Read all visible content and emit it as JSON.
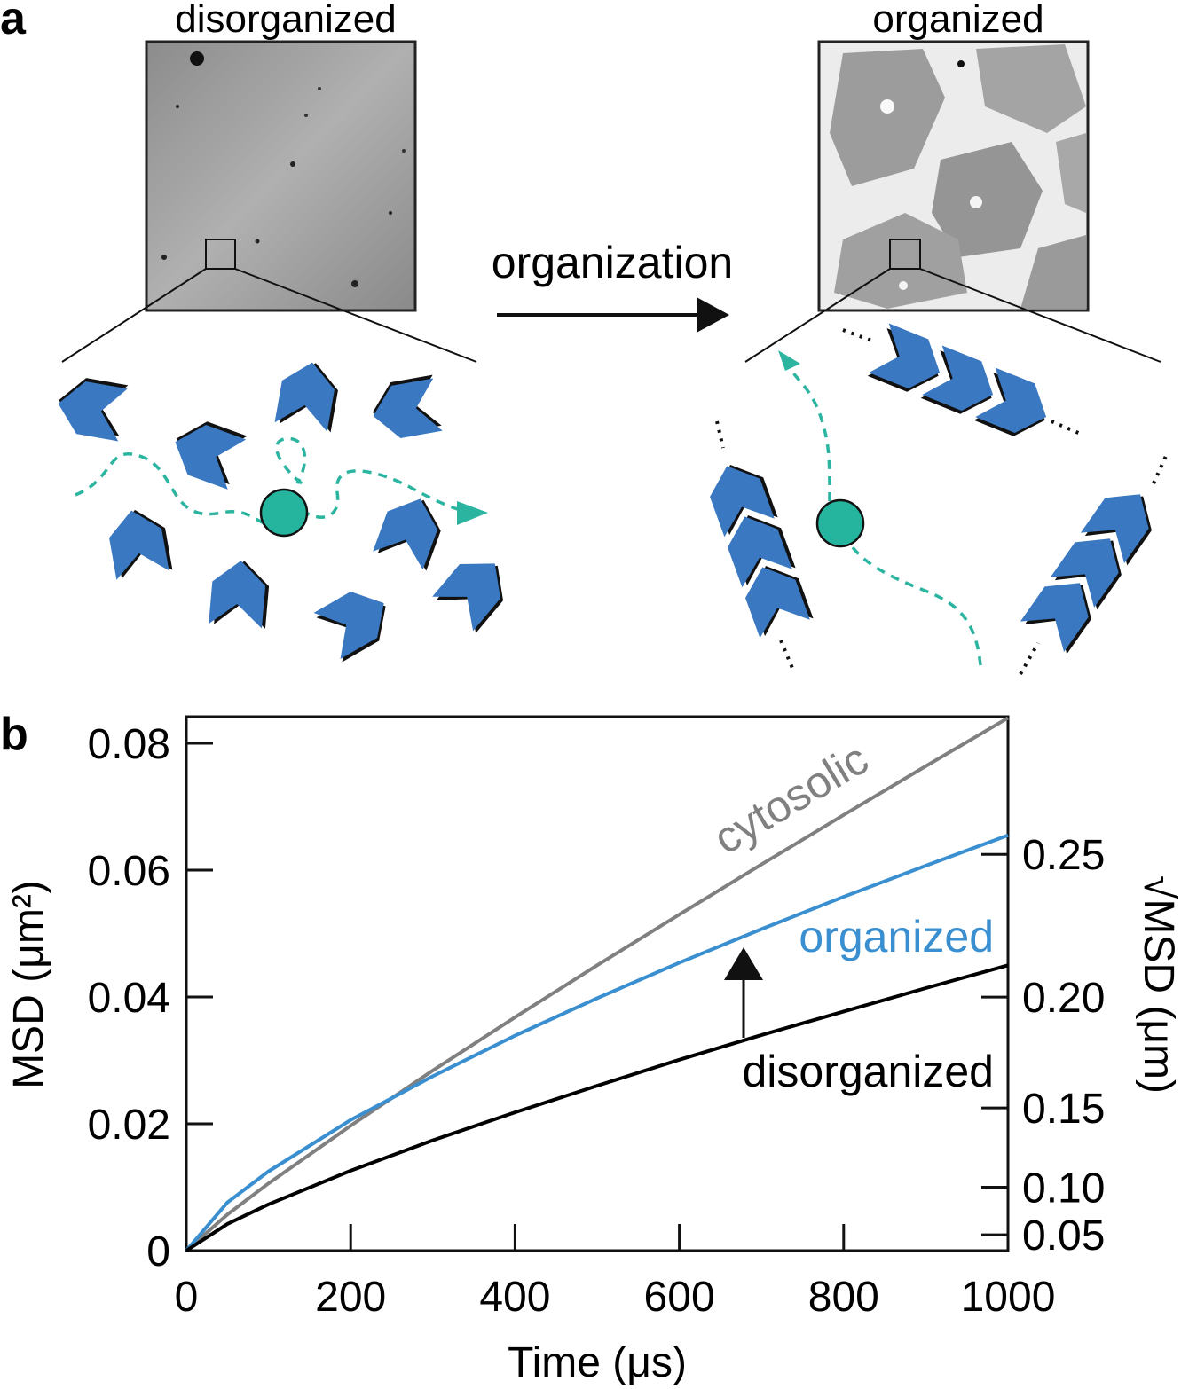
{
  "panel_a": {
    "panel_label": "a",
    "left_title": "disorganized",
    "right_title": "organized",
    "arrow_label": "organization"
  },
  "chart_data": {
    "type": "line",
    "panel_label": "b",
    "x_label": "Time (μs)",
    "y_label": "MSD (μm²)",
    "y2_label": "√MSD (μm)",
    "x": [
      0,
      50,
      100,
      200,
      300,
      400,
      500,
      600,
      700,
      800,
      900,
      1000
    ],
    "series": [
      {
        "name": "cytosolic",
        "color": "#808080",
        "values": [
          0,
          0.0057,
          0.0106,
          0.0197,
          0.0284,
          0.0368,
          0.045,
          0.053,
          0.0609,
          0.0687,
          0.0764,
          0.084
        ]
      },
      {
        "name": "organized",
        "color": "#3a8fd0",
        "values": [
          0,
          0.0076,
          0.0125,
          0.0206,
          0.0275,
          0.0339,
          0.0398,
          0.0454,
          0.0507,
          0.0558,
          0.0607,
          0.0655
        ]
      },
      {
        "name": "disorganized",
        "color": "#000000",
        "values": [
          0,
          0.0042,
          0.0073,
          0.0126,
          0.0174,
          0.0218,
          0.026,
          0.0301,
          0.034,
          0.0377,
          0.0414,
          0.045
        ]
      }
    ],
    "xlim": [
      0,
      1000
    ],
    "xticks": [
      0,
      200,
      400,
      600,
      800,
      1000
    ],
    "ylim": [
      0,
      0.0842
    ],
    "yticks": [
      0,
      0.02,
      0.04,
      0.06,
      0.08
    ],
    "y2lim": [
      0,
      0.2902
    ],
    "y2scale": "sqrt",
    "y2ticks": [
      0.05,
      {
        "value": 0.1,
        "label": "0.10"
      },
      0.15,
      {
        "value": 0.2,
        "label": "0.20"
      },
      0.25
    ]
  }
}
